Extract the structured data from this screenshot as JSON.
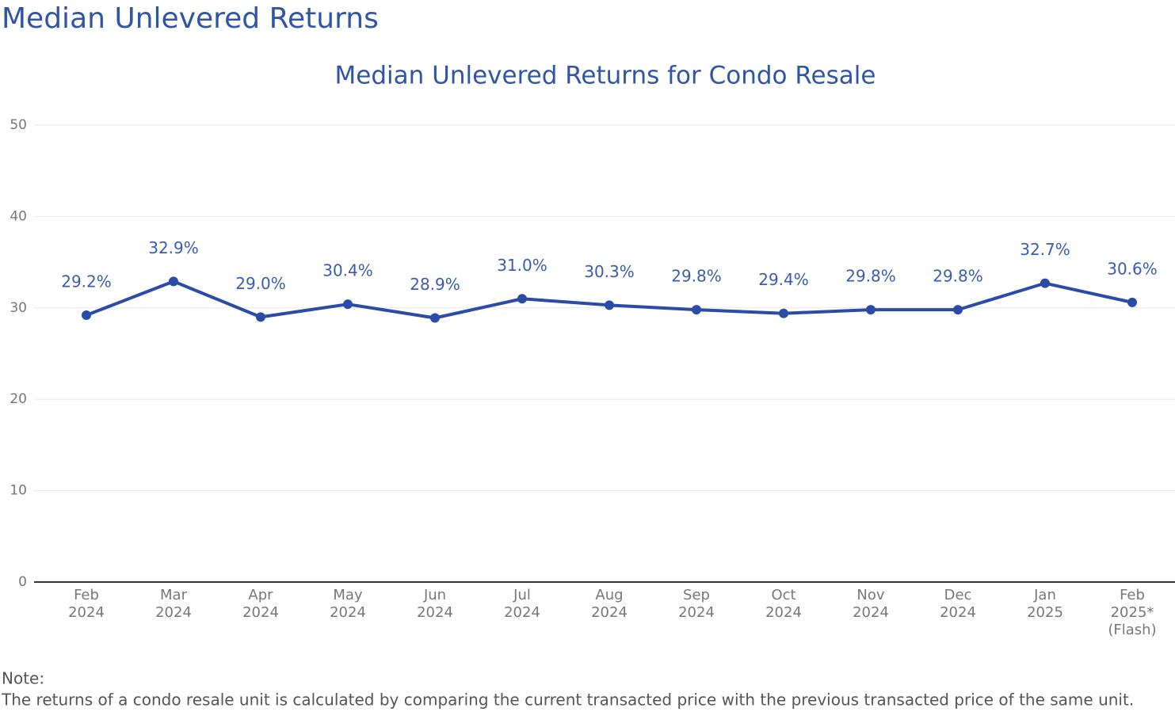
{
  "header_title": "Median Unlevered Returns",
  "note_label": "Note:",
  "note_text": "The returns of a condo resale unit is calculated by comparing the current transacted price with the previous transacted price of the same unit.",
  "chart_data": {
    "type": "line",
    "title": "Median Unlevered Returns for Condo Resale",
    "categories": [
      [
        "Feb",
        "2024"
      ],
      [
        "Mar",
        "2024"
      ],
      [
        "Apr",
        "2024"
      ],
      [
        "May",
        "2024"
      ],
      [
        "Jun",
        "2024"
      ],
      [
        "Jul",
        "2024"
      ],
      [
        "Aug",
        "2024"
      ],
      [
        "Sep",
        "2024"
      ],
      [
        "Oct",
        "2024"
      ],
      [
        "Nov",
        "2024"
      ],
      [
        "Dec",
        "2024"
      ],
      [
        "Jan",
        "2025"
      ],
      [
        "Feb",
        "2025*",
        "(Flash)"
      ]
    ],
    "values": [
      29.2,
      32.9,
      29.0,
      30.4,
      28.9,
      31.0,
      30.3,
      29.8,
      29.4,
      29.8,
      29.8,
      32.7,
      30.6
    ],
    "value_labels": [
      "29.2%",
      "32.9%",
      "29.0%",
      "30.4%",
      "28.9%",
      "31.0%",
      "30.3%",
      "29.8%",
      "29.4%",
      "29.8%",
      "29.8%",
      "32.7%",
      "30.6%"
    ],
    "color": "#2a4ca6",
    "ylim": [
      0,
      50
    ],
    "yticks": [
      0,
      10,
      20,
      30,
      40,
      50
    ],
    "grid": true
  }
}
